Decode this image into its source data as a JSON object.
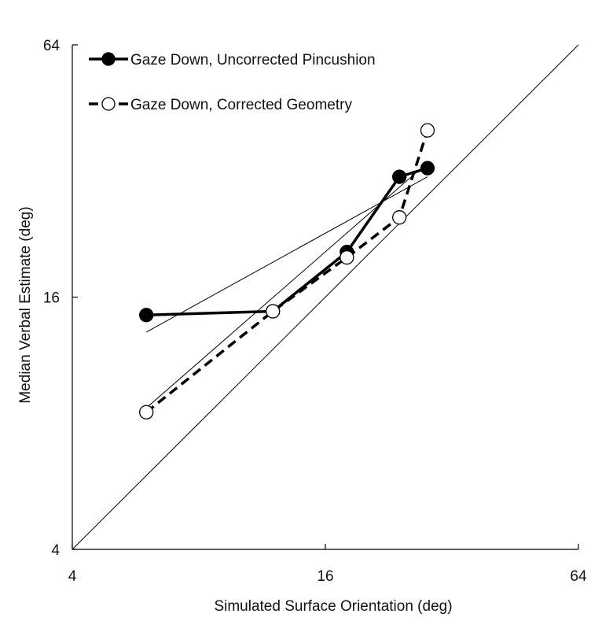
{
  "chart_data": {
    "type": "line",
    "title": "",
    "xlabel": "Simulated Surface Orientation (deg)",
    "ylabel": "Median Verbal Estimate (deg)",
    "xscale": "log2",
    "yscale": "log2",
    "xlim": [
      4,
      64
    ],
    "ylim": [
      4,
      64
    ],
    "xticks": [
      4,
      16,
      64
    ],
    "yticks": [
      4,
      16,
      64
    ],
    "grid": false,
    "legend_position": "top-left",
    "series": [
      {
        "name": "Gaze Down, Uncorrected Pincushion",
        "style": "solid",
        "marker": "filled-circle",
        "color": "#000000",
        "x": [
          6,
          12,
          18,
          24,
          28
        ],
        "y": [
          14.5,
          14.8,
          20.5,
          31,
          32.5
        ]
      },
      {
        "name": "Gaze Down, Corrected Geometry",
        "style": "dashed",
        "marker": "open-circle",
        "color": "#000000",
        "x": [
          6,
          12,
          18,
          24,
          28
        ],
        "y": [
          8.5,
          14.8,
          19.9,
          24.8,
          40
        ]
      }
    ],
    "reference_lines": [
      {
        "kind": "identity",
        "x": [
          4,
          64
        ],
        "y": [
          4,
          64
        ]
      },
      {
        "kind": "fit",
        "x": [
          6,
          28
        ],
        "y": [
          13.2,
          31
        ]
      },
      {
        "kind": "fit",
        "x": [
          6,
          28
        ],
        "y": [
          8.7,
          33.5
        ]
      }
    ]
  }
}
